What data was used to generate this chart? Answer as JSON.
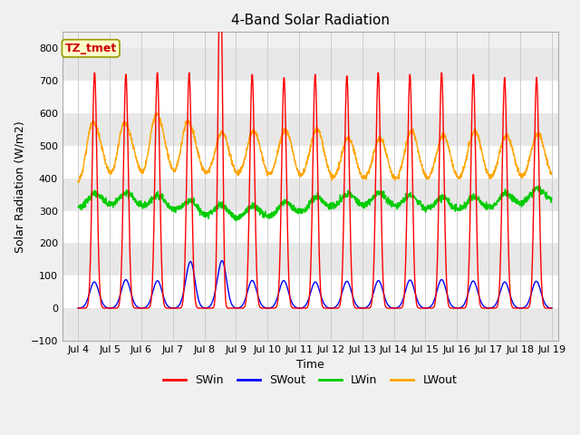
{
  "title": "4-Band Solar Radiation",
  "xlabel": "Time",
  "ylabel": "Solar Radiation (W/m2)",
  "ylim": [
    -100,
    850
  ],
  "yticks": [
    -100,
    0,
    100,
    200,
    300,
    400,
    500,
    600,
    700,
    800
  ],
  "xlim_days": [
    3.5,
    19.2
  ],
  "xtick_days": [
    4,
    5,
    6,
    7,
    8,
    9,
    10,
    11,
    12,
    13,
    14,
    15,
    16,
    17,
    18,
    19
  ],
  "xtick_labels": [
    "Jul 4",
    "Jul 5",
    "Jul 6",
    "Jul 7",
    "Jul 8",
    "Jul 9",
    "Jul 10",
    "Jul 11",
    "Jul 12",
    "Jul 13",
    "Jul 14",
    "Jul 15",
    "Jul 16",
    "Jul 17",
    "Jul 18",
    "Jul 19"
  ],
  "colors": {
    "SWin": "#ff0000",
    "SWout": "#0000ff",
    "LWin": "#00cc00",
    "LWout": "#ffa500"
  },
  "annotation_text": "TZ_tmet",
  "annotation_color": "#cc0000",
  "annotation_bg": "#ffffcc",
  "annotation_border": "#999900",
  "title_fontsize": 11,
  "label_fontsize": 9,
  "tick_fontsize": 8,
  "legend_fontsize": 9,
  "linewidth": 1.0,
  "figwidth": 6.4,
  "figheight": 4.8,
  "dpi": 100
}
